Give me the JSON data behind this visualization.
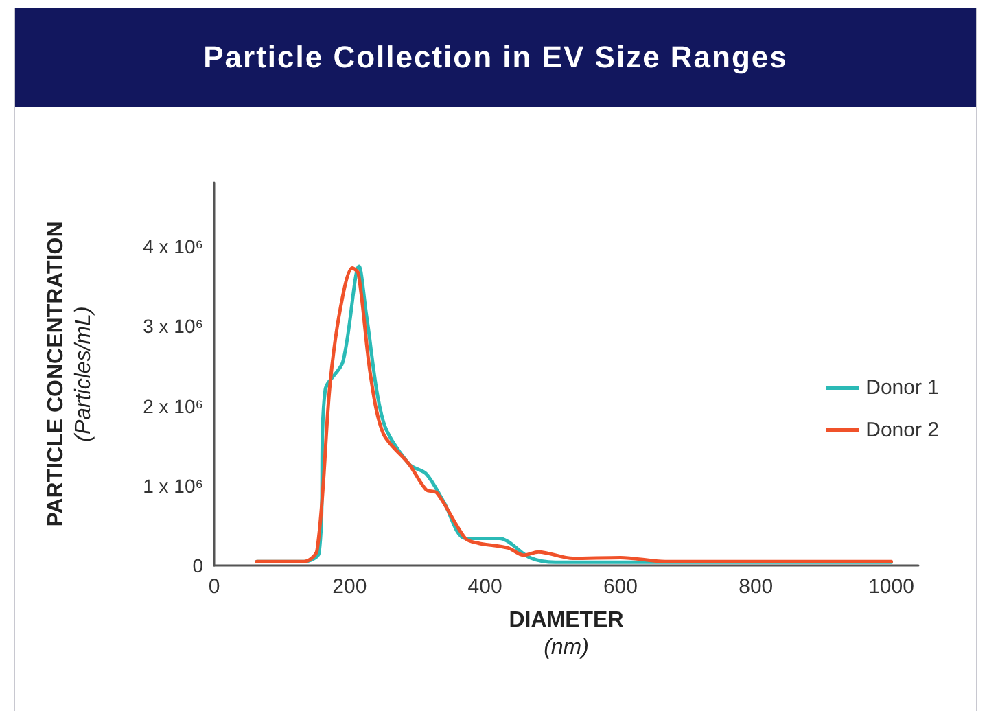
{
  "chart_data": {
    "type": "line",
    "title": "Particle Collection in EV Size Ranges",
    "xlabel": "DIAMETER\n(nm)",
    "ylabel": "PARTICLE CONCENTRATION\n(Particles/mL)",
    "xlim": [
      0,
      1040
    ],
    "xticks": [
      0,
      200,
      400,
      600,
      800,
      1000
    ],
    "ylim": [
      0,
      4800000
    ],
    "yticks": [
      {
        "value": 0,
        "label": "0"
      },
      {
        "value": 1000000,
        "label": "1 x 10⁶"
      },
      {
        "value": 2000000,
        "label": "2 x 10⁶"
      },
      {
        "value": 3000000,
        "label": "3 x 10⁶"
      },
      {
        "value": 4000000,
        "label": "4 x 10⁶"
      }
    ],
    "grid": false,
    "legend": "right",
    "marker": "none",
    "line_style": "solid",
    "series": [
      {
        "name": "Donor 1",
        "color": "#2bbab6",
        "x": [
          63,
          133,
          155,
          164,
          190,
          214,
          225,
          250,
          288,
          313,
          339,
          371,
          421,
          466,
          504,
          1000
        ],
        "values": [
          50000,
          50000,
          160000,
          2200000,
          2550000,
          3750000,
          3130000,
          1800000,
          1270000,
          1150000,
          800000,
          340000,
          340000,
          100000,
          40000,
          40000
        ]
      },
      {
        "name": "Donor 2",
        "color": "#f0522a",
        "x": [
          63,
          133,
          152,
          171,
          187,
          204,
          213,
          231,
          250,
          288,
          313,
          329,
          371,
          390,
          434,
          457,
          479,
          530,
          600,
          666,
          1000
        ],
        "values": [
          50000,
          50000,
          190000,
          2260000,
          3250000,
          3730000,
          3660000,
          2380000,
          1650000,
          1270000,
          950000,
          910000,
          340000,
          280000,
          220000,
          130000,
          170000,
          90000,
          100000,
          50000,
          50000
        ]
      }
    ]
  }
}
